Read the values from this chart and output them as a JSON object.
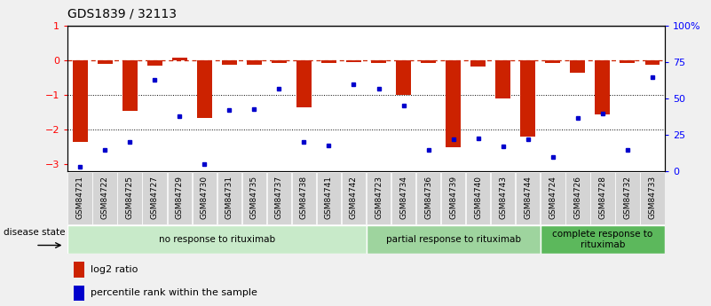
{
  "title": "GDS1839 / 32113",
  "samples": [
    "GSM84721",
    "GSM84722",
    "GSM84725",
    "GSM84727",
    "GSM84729",
    "GSM84730",
    "GSM84731",
    "GSM84735",
    "GSM84737",
    "GSM84738",
    "GSM84741",
    "GSM84742",
    "GSM84723",
    "GSM84734",
    "GSM84736",
    "GSM84739",
    "GSM84740",
    "GSM84743",
    "GSM84744",
    "GSM84724",
    "GSM84726",
    "GSM84728",
    "GSM84732",
    "GSM84733"
  ],
  "log2_ratio": [
    -2.35,
    -0.1,
    -1.45,
    -0.15,
    0.08,
    -1.65,
    -0.12,
    -0.12,
    -0.08,
    -1.35,
    -0.08,
    -0.05,
    -0.08,
    -1.0,
    -0.06,
    -2.5,
    -0.18,
    -1.1,
    -2.2,
    -0.08,
    -0.35,
    -1.55,
    -0.08,
    -0.12
  ],
  "percentile": [
    3,
    15,
    20,
    63,
    38,
    5,
    42,
    43,
    57,
    20,
    18,
    60,
    57,
    45,
    15,
    22,
    23,
    17,
    22,
    10,
    37,
    40,
    15,
    65
  ],
  "groups": [
    {
      "label": "no response to rituximab",
      "start": 0,
      "end": 12,
      "color": "#c8eac9"
    },
    {
      "label": "partial response to rituximab",
      "start": 12,
      "end": 19,
      "color": "#9ed49e"
    },
    {
      "label": "complete response to\nrituximab",
      "start": 19,
      "end": 24,
      "color": "#5cb85c"
    }
  ],
  "bar_color": "#cc2200",
  "dot_color": "#0000cc",
  "ylim_left": [
    -3.2,
    1.0
  ],
  "ylim_right": [
    0,
    100
  ],
  "right_ticks": [
    0,
    25,
    50,
    75,
    100
  ],
  "right_tick_labels": [
    "0",
    "25",
    "50",
    "75",
    "100%"
  ],
  "bg_color": "#f0f0f0",
  "plot_bg": "#ffffff",
  "title_fontsize": 10,
  "tick_label_fontsize": 6.5,
  "legend_fontsize": 8
}
